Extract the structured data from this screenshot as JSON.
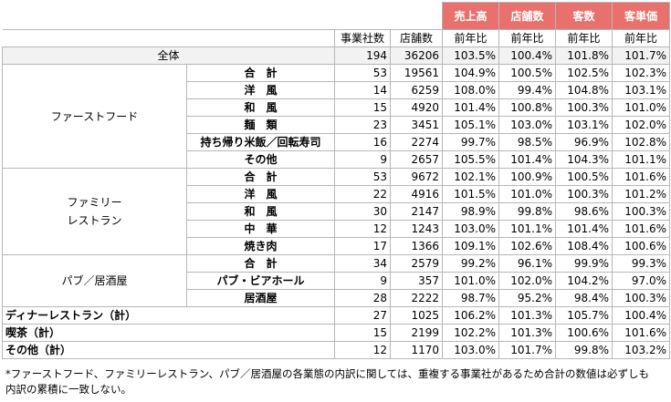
{
  "header": {
    "metrics": [
      "売上高",
      "店舗数",
      "客数",
      "客単価"
    ],
    "col_companies": "事業社数",
    "col_stores": "店舗数",
    "yoy": "前年比"
  },
  "total": {
    "label": "全体",
    "companies": "194",
    "stores": "36206",
    "v": [
      "103.5%",
      "100.4%",
      "101.8%",
      "101.7%"
    ]
  },
  "groups": [
    {
      "label": "ファーストフード",
      "rows": [
        {
          "label": "合　計",
          "companies": "53",
          "stores": "19561",
          "v": [
            "104.9%",
            "100.5%",
            "102.5%",
            "102.3%"
          ]
        },
        {
          "label": "洋　風",
          "companies": "14",
          "stores": "6259",
          "v": [
            "108.0%",
            "99.4%",
            "104.8%",
            "103.1%"
          ]
        },
        {
          "label": "和　風",
          "companies": "15",
          "stores": "4920",
          "v": [
            "101.4%",
            "100.8%",
            "100.3%",
            "101.0%"
          ]
        },
        {
          "label": "麺　類",
          "companies": "23",
          "stores": "3451",
          "v": [
            "105.1%",
            "103.0%",
            "103.1%",
            "102.0%"
          ]
        },
        {
          "label": "持ち帰り米飯／回転寿司",
          "companies": "16",
          "stores": "2274",
          "v": [
            "99.7%",
            "98.5%",
            "96.9%",
            "102.8%"
          ]
        },
        {
          "label": "その他",
          "companies": "9",
          "stores": "2657",
          "v": [
            "105.5%",
            "101.4%",
            "104.3%",
            "101.1%"
          ]
        }
      ]
    },
    {
      "label": "ファミリーレストラン",
      "label_lines": [
        "ファミリー",
        "レストラン"
      ],
      "rows": [
        {
          "label": "合　計",
          "companies": "53",
          "stores": "9672",
          "v": [
            "102.1%",
            "100.9%",
            "100.5%",
            "101.6%"
          ]
        },
        {
          "label": "洋　風",
          "companies": "22",
          "stores": "4916",
          "v": [
            "101.5%",
            "101.0%",
            "100.3%",
            "101.2%"
          ]
        },
        {
          "label": "和　風",
          "companies": "30",
          "stores": "2147",
          "v": [
            "98.9%",
            "99.8%",
            "98.6%",
            "100.3%"
          ]
        },
        {
          "label": "中　華",
          "companies": "12",
          "stores": "1243",
          "v": [
            "103.0%",
            "101.1%",
            "101.4%",
            "101.6%"
          ]
        },
        {
          "label": "焼き肉",
          "companies": "17",
          "stores": "1366",
          "v": [
            "109.1%",
            "102.6%",
            "108.4%",
            "100.6%"
          ]
        }
      ]
    },
    {
      "label": "パブ／居酒屋",
      "rows": [
        {
          "label": "合　計",
          "companies": "34",
          "stores": "2579",
          "v": [
            "99.2%",
            "96.1%",
            "99.9%",
            "99.3%"
          ]
        },
        {
          "label": "パブ・ビアホール",
          "companies": "9",
          "stores": "357",
          "v": [
            "101.0%",
            "102.0%",
            "104.2%",
            "97.0%"
          ]
        },
        {
          "label": "居酒屋",
          "companies": "28",
          "stores": "2222",
          "v": [
            "98.7%",
            "95.2%",
            "98.4%",
            "100.3%"
          ]
        }
      ]
    }
  ],
  "singles": [
    {
      "label": "ディナーレストラン（計）",
      "companies": "27",
      "stores": "1025",
      "v": [
        "106.2%",
        "101.3%",
        "105.7%",
        "100.4%"
      ]
    },
    {
      "label": "喫茶（計）",
      "companies": "15",
      "stores": "2199",
      "v": [
        "102.2%",
        "101.3%",
        "100.6%",
        "101.6%"
      ]
    },
    {
      "label": "その他（計）",
      "companies": "12",
      "stores": "1170",
      "v": [
        "103.0%",
        "101.7%",
        "99.8%",
        "103.2%"
      ]
    }
  ],
  "note_lines": [
    "*ファーストフード、ファミリーレストラン、パブ／居酒屋の各業態の内訳に関しては、重複する事業社があるため合計の数値は必ずしも",
    "内訳の累積に一致しない。"
  ]
}
